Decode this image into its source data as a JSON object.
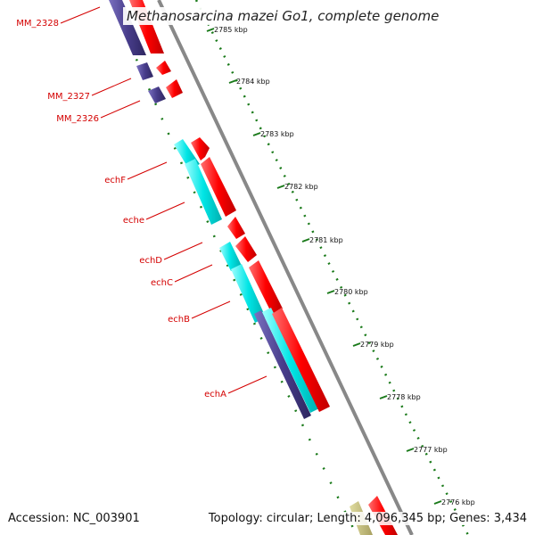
{
  "title": "Methanosarcina mazei Go1, complete genome",
  "footer": {
    "accession": "Accession: NC_003901",
    "summary": "Topology: circular; Length: 4,096,345 bp; Genes: 3,434"
  },
  "colors": {
    "forward_gene": "#ff0000",
    "reverse_gene": "#00e5e5",
    "other_gene": "#483d8b",
    "olive_gene": "#bdb76b",
    "backbone": "#888888",
    "tick": "#1a7a1a",
    "label_line": "#d40000"
  },
  "ticks": [
    "2785 kbp",
    "2784 kbp",
    "2783 kbp",
    "2782 kbp",
    "2781 kbp",
    "2780 kbp",
    "2779 kbp",
    "2778 kbp",
    "2777 kbp",
    "2776 kbp"
  ],
  "gene_labels": [
    "MM_2328",
    "MM_2327",
    "MM_2326",
    "echF",
    "eche",
    "echD",
    "echC",
    "echB",
    "echA"
  ]
}
